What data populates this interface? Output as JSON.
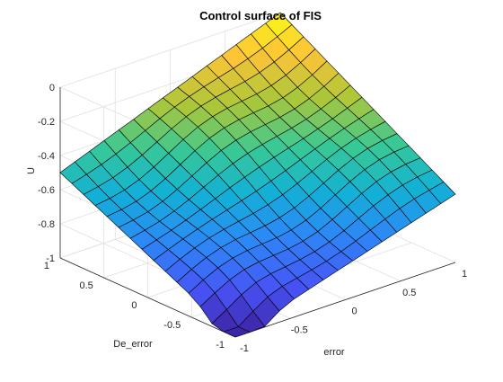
{
  "chart_data": {
    "type": "surface",
    "title": "Control surface of FIS",
    "xlabel": "error",
    "ylabel": "De_error",
    "zlabel": "U",
    "xlim": [
      -1,
      1
    ],
    "ylim": [
      -1,
      1
    ],
    "zlim": [
      -1,
      0
    ],
    "x_ticks": [
      "-1",
      "-0.5",
      "0",
      "0.5",
      "1"
    ],
    "y_ticks": [
      "-1",
      "-0.5",
      "0",
      "0.5",
      "1"
    ],
    "z_ticks": [
      "-1",
      "-0.8",
      "-0.6",
      "-0.4",
      "-0.2",
      "0"
    ],
    "grid": true,
    "colormap": "parula",
    "x": [
      -1,
      -0.8667,
      -0.7333,
      -0.6,
      -0.4667,
      -0.3333,
      -0.2,
      -0.0667,
      0.0667,
      0.2,
      0.3333,
      0.4667,
      0.6,
      0.7333,
      0.8667,
      1
    ],
    "y": [
      -1,
      -0.8667,
      -0.7333,
      -0.6,
      -0.4667,
      -0.3333,
      -0.2,
      -0.0667,
      0.0667,
      0.2,
      0.3333,
      0.4667,
      0.6,
      0.7333,
      0.8667,
      1
    ],
    "corners": {
      "x_-1_y_-1": -1.0,
      "x_1_y_-1": -0.6,
      "x_-1_y_1": -0.5,
      "x_1_y_1": 0.0
    }
  }
}
